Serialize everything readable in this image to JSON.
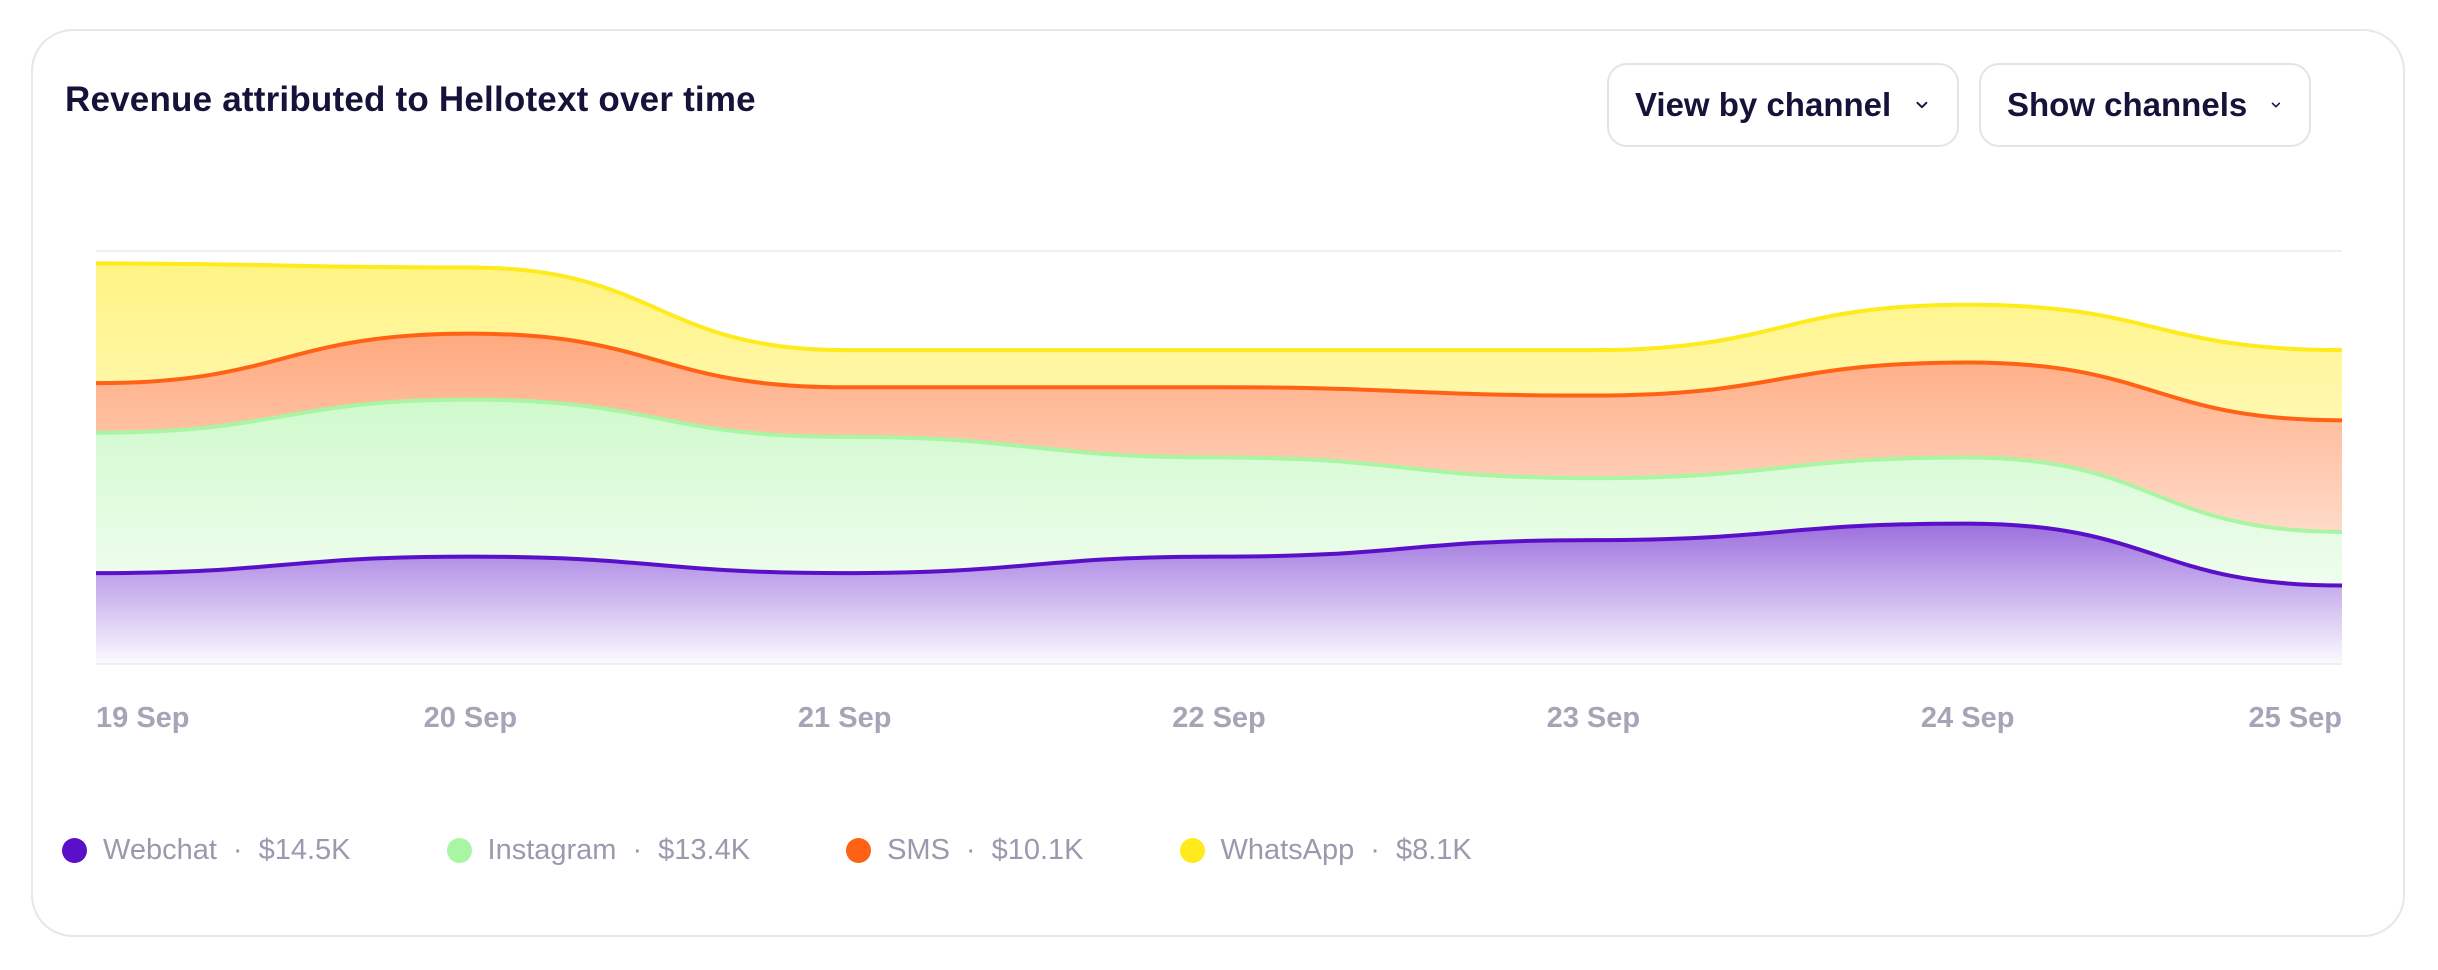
{
  "chart_data": {
    "type": "area",
    "stacked": true,
    "title": "Revenue attributed to Hellotext over time",
    "xlabel": "",
    "ylabel": "",
    "categories": [
      "19 Sep",
      "20 Sep",
      "21 Sep",
      "22 Sep",
      "23 Sep",
      "24 Sep",
      "25 Sep"
    ],
    "ylim": [
      0,
      100
    ],
    "grid": "top and baseline only",
    "legend": "bottom",
    "series": [
      {
        "name": "Webchat",
        "total": "$14.5K",
        "color": "#5a0fc8",
        "values": [
          22,
          26,
          22,
          26,
          30,
          34,
          19
        ]
      },
      {
        "name": "Instagram",
        "total": "$13.4K",
        "color": "#a8f5a3",
        "values": [
          34,
          38,
          33,
          24,
          15,
          16,
          13
        ]
      },
      {
        "name": "SMS",
        "total": "$10.1K",
        "color": "#ff6214",
        "values": [
          12,
          16,
          12,
          17,
          20,
          23,
          27
        ]
      },
      {
        "name": "WhatsApp",
        "total": "$8.1K",
        "color": "#ffea1c",
        "values": [
          29,
          16,
          9,
          9,
          11,
          14,
          17
        ]
      }
    ]
  },
  "controls": {
    "view_by": "View by channel",
    "show": "Show channels"
  },
  "legend_separator": "·"
}
